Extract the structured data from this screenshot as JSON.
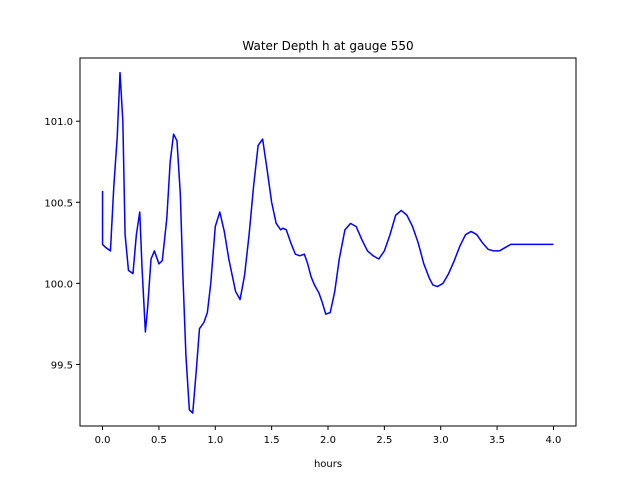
{
  "chart_data": {
    "type": "line",
    "title": "Water Depth h at gauge 550",
    "xlabel": "hours",
    "ylabel": "",
    "xlim": [
      -0.2,
      4.2
    ],
    "ylim": [
      99.12,
      101.39
    ],
    "grid": false,
    "x_ticks": [
      0.0,
      0.5,
      1.0,
      1.5,
      2.0,
      2.5,
      3.0,
      3.5,
      4.0
    ],
    "x_tick_labels": [
      "0.0",
      "0.5",
      "1.0",
      "1.5",
      "2.0",
      "2.5",
      "3.0",
      "3.5",
      "4.0"
    ],
    "y_ticks": [
      99.5,
      100.0,
      100.5,
      101.0
    ],
    "y_tick_labels": [
      "99.5",
      "100.0",
      "100.5",
      "101.0"
    ],
    "series": [
      {
        "color": "#0000ff",
        "x": [
          0.0,
          0.0,
          0.03,
          0.07,
          0.1,
          0.13,
          0.155,
          0.18,
          0.2,
          0.23,
          0.27,
          0.3,
          0.33,
          0.35,
          0.38,
          0.4,
          0.43,
          0.46,
          0.48,
          0.5,
          0.53,
          0.57,
          0.6,
          0.63,
          0.66,
          0.69,
          0.71,
          0.74,
          0.77,
          0.8,
          0.83,
          0.86,
          0.9,
          0.93,
          0.96,
          1.0,
          1.04,
          1.08,
          1.12,
          1.15,
          1.18,
          1.22,
          1.26,
          1.3,
          1.34,
          1.38,
          1.42,
          1.46,
          1.5,
          1.54,
          1.58,
          1.6,
          1.63,
          1.67,
          1.71,
          1.75,
          1.79,
          1.82,
          1.85,
          1.88,
          1.92,
          1.95,
          1.98,
          2.02,
          2.06,
          2.1,
          2.15,
          2.2,
          2.25,
          2.3,
          2.35,
          2.4,
          2.45,
          2.5,
          2.55,
          2.6,
          2.65,
          2.7,
          2.75,
          2.8,
          2.85,
          2.9,
          2.93,
          2.97,
          3.02,
          3.07,
          3.12,
          3.17,
          3.22,
          3.27,
          3.32,
          3.37,
          3.42,
          3.47,
          3.52,
          3.57,
          3.62,
          3.67,
          3.72,
          3.77,
          3.82,
          3.87,
          3.92,
          3.96,
          4.0
        ],
        "y": [
          100.57,
          100.24,
          100.22,
          100.2,
          100.6,
          100.9,
          101.3,
          101.0,
          100.3,
          100.08,
          100.06,
          100.3,
          100.44,
          100.1,
          99.7,
          99.85,
          100.15,
          100.2,
          100.16,
          100.12,
          100.14,
          100.4,
          100.75,
          100.92,
          100.88,
          100.55,
          100.1,
          99.55,
          99.22,
          99.2,
          99.45,
          99.72,
          99.76,
          99.82,
          100.0,
          100.35,
          100.44,
          100.32,
          100.15,
          100.05,
          99.95,
          99.9,
          100.05,
          100.3,
          100.6,
          100.85,
          100.89,
          100.7,
          100.5,
          100.37,
          100.33,
          100.34,
          100.33,
          100.25,
          100.18,
          100.17,
          100.18,
          100.12,
          100.04,
          99.99,
          99.94,
          99.88,
          99.81,
          99.82,
          99.95,
          100.15,
          100.33,
          100.37,
          100.35,
          100.27,
          100.2,
          100.17,
          100.15,
          100.2,
          100.3,
          100.42,
          100.45,
          100.42,
          100.35,
          100.25,
          100.12,
          100.03,
          99.99,
          99.98,
          100.0,
          100.06,
          100.14,
          100.23,
          100.3,
          100.32,
          100.3,
          100.25,
          100.21,
          100.2,
          100.2,
          100.22,
          100.24,
          100.24,
          100.24,
          100.24,
          100.24,
          100.24,
          100.24,
          100.24,
          100.24
        ]
      }
    ]
  }
}
